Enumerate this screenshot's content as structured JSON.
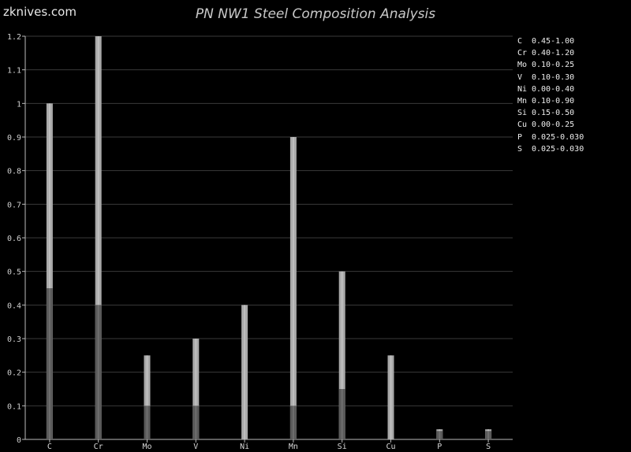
{
  "brand": "zknives.com",
  "chart_data": {
    "type": "bar",
    "title": "PN NW1 Steel Composition Analysis",
    "categories": [
      "C",
      "Cr",
      "Mo",
      "V",
      "Ni",
      "Mn",
      "Si",
      "Cu",
      "P",
      "S"
    ],
    "series": [
      {
        "values": [
          0.45,
          0.4,
          0.1,
          0.1,
          0.0,
          0.1,
          0.15,
          0.0,
          0.025,
          0.025
        ]
      },
      {
        "values": [
          1.0,
          1.2,
          0.25,
          0.3,
          0.4,
          0.9,
          0.5,
          0.25,
          0.03,
          0.03
        ]
      }
    ],
    "ylim": [
      0,
      1.2
    ],
    "yticks": [
      "0",
      "0.1",
      "0.2",
      "0.3",
      "0.4",
      "0.5",
      "0.6",
      "0.7",
      "0.8",
      "0.9",
      "1",
      "1.1",
      "1.2"
    ],
    "grid": true,
    "legend_position": "right",
    "legend": [
      {
        "symbol": "C",
        "range": "0.45-1.00"
      },
      {
        "symbol": "Cr",
        "range": "0.40-1.20"
      },
      {
        "symbol": "Mo",
        "range": "0.10-0.25"
      },
      {
        "symbol": "V",
        "range": "0.10-0.30"
      },
      {
        "symbol": "Ni",
        "range": "0.00-0.40"
      },
      {
        "symbol": "Mn",
        "range": "0.10-0.90"
      },
      {
        "symbol": "Si",
        "range": "0.15-0.50"
      },
      {
        "symbol": "Cu",
        "range": "0.00-0.25"
      },
      {
        "symbol": "P",
        "range": "0.025-0.030"
      },
      {
        "symbol": "S",
        "range": "0.025-0.030"
      }
    ],
    "colors": {
      "min_bar": "#5a5a5a",
      "max_bar": "#a9a9a9",
      "grid": "#3a3a3a",
      "axis": "#bbbbbb"
    }
  }
}
